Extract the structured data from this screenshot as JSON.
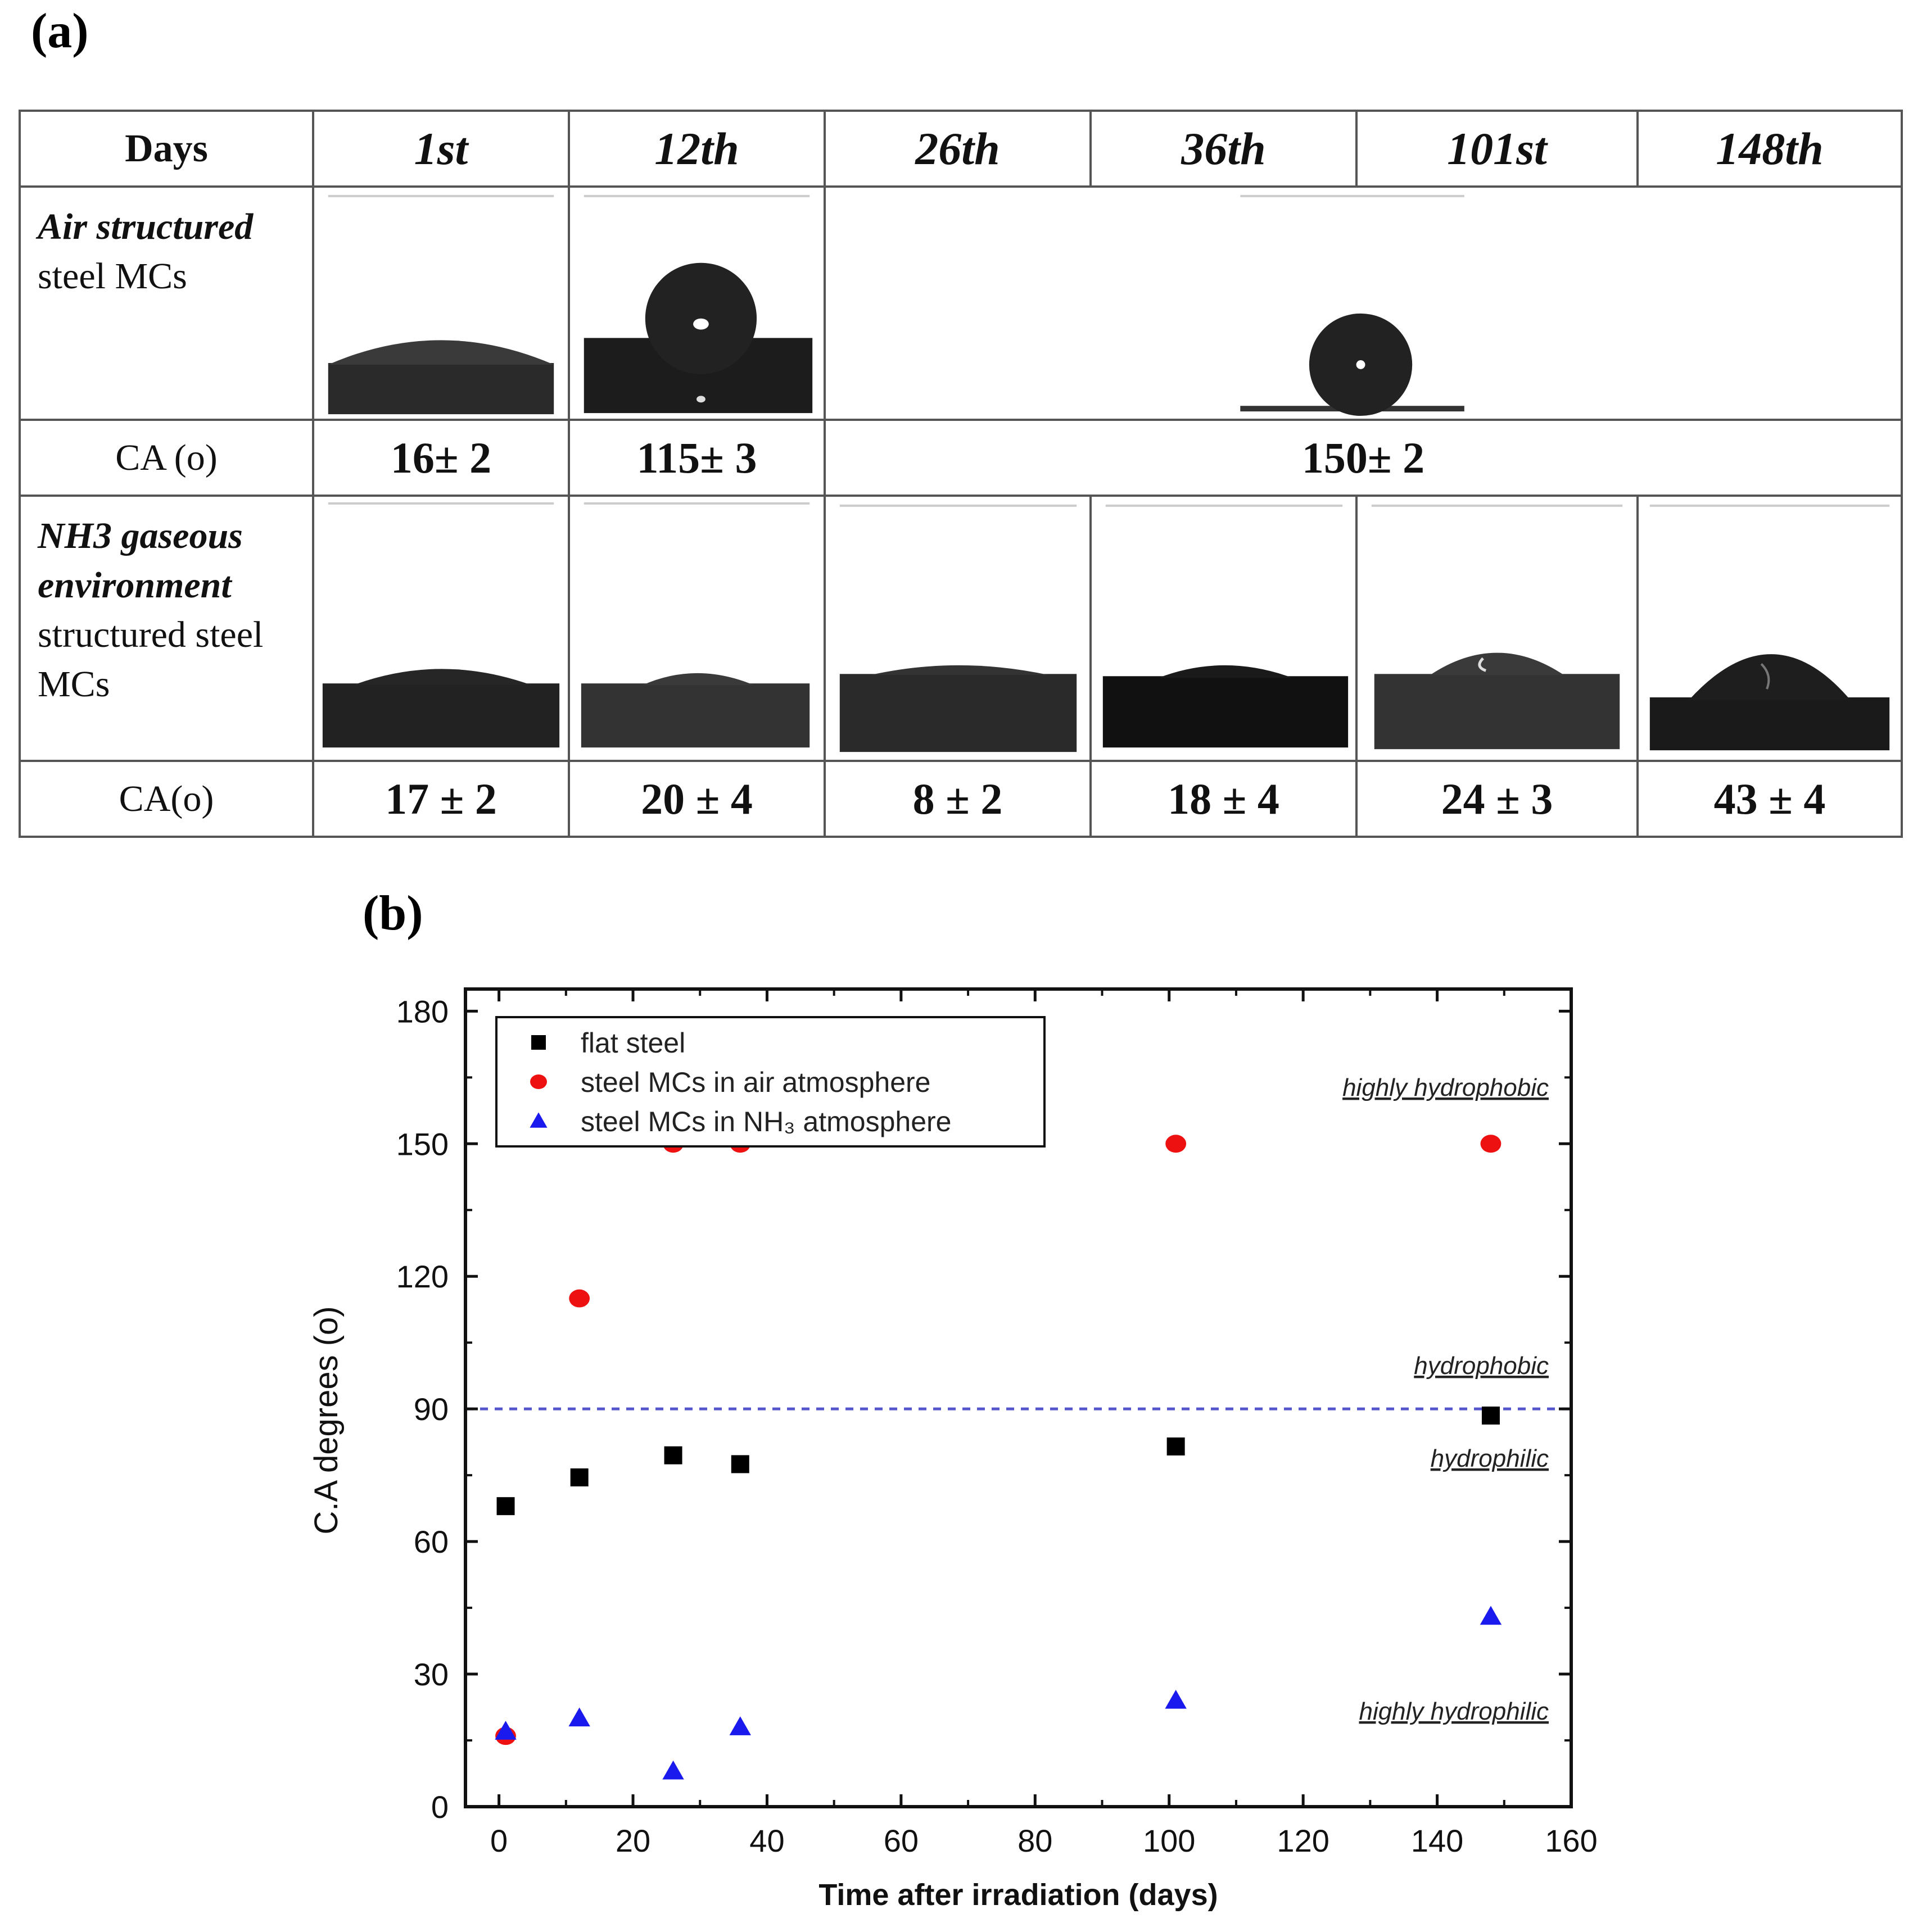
{
  "panel_a": {
    "label": "(a)",
    "header": {
      "days": "Days",
      "cols": [
        "1st",
        "12th",
        "26th",
        "36th",
        "101st",
        "148th"
      ]
    },
    "air_row": {
      "label_bold": "Air structured",
      "label_rest": "steel MCs"
    },
    "air_ca": {
      "label": "CA (o)",
      "values": [
        "16± 2",
        "115± 3",
        "150± 2"
      ]
    },
    "nh3_row": {
      "label_bold_1": "NH3 gaseous",
      "label_bold_2": "environment",
      "label_rest_1": "structured steel",
      "label_rest_2": "MCs"
    },
    "nh3_ca": {
      "label": "CA(o)",
      "values": [
        "17 ± 2",
        "20 ± 4",
        "8 ± 2",
        "18 ± 4",
        "24 ± 3",
        "43 ± 4"
      ]
    }
  },
  "panel_b": {
    "label": "(b)"
  },
  "chart_data": {
    "type": "scatter",
    "xlabel": "Time after irradiation (days)",
    "ylabel": "C.A  degrees (o)",
    "xlim": [
      -5,
      160
    ],
    "ylim": [
      0,
      185
    ],
    "xticks": [
      0,
      20,
      40,
      60,
      80,
      100,
      120,
      140,
      160
    ],
    "yticks": [
      0,
      30,
      60,
      90,
      120,
      150,
      180
    ],
    "legend_position": "top-left",
    "series": [
      {
        "name": "flat steel",
        "marker": "square",
        "color": "#000000",
        "x": [
          1,
          12,
          26,
          36,
          101,
          148
        ],
        "y": [
          68,
          74.5,
          79.5,
          77.5,
          81.5,
          88.5
        ]
      },
      {
        "name": "steel MCs in air atmosphere",
        "marker": "circle",
        "color": "#ee1111",
        "x": [
          1,
          12,
          26,
          36,
          101,
          148
        ],
        "y": [
          16,
          115,
          150,
          150,
          150,
          150
        ]
      },
      {
        "name": "steel MCs in NH₃ atmosphere",
        "marker": "triangle",
        "color": "#1a1aee",
        "x": [
          1,
          12,
          26,
          36,
          101,
          148
        ],
        "y": [
          17,
          20,
          8,
          18,
          24,
          43
        ]
      }
    ],
    "reference_line": {
      "y": 90,
      "style": "dashed",
      "color": "#5555cc"
    },
    "region_labels": [
      "highly hydrophobic",
      "hydrophobic",
      "hydrophilic",
      "highly hydrophilic"
    ]
  }
}
